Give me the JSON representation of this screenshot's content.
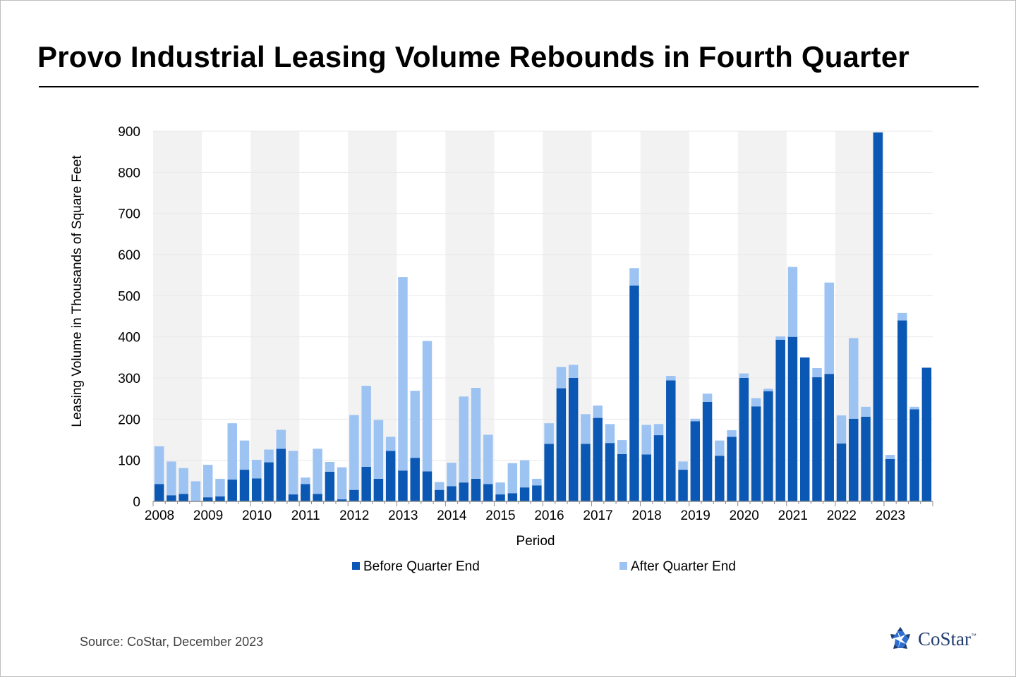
{
  "title": "Provo Industrial Leasing Volume Rebounds in Fourth Quarter",
  "source": "Source: CoStar, December 2023",
  "logo": {
    "text": "CoStar",
    "tm": "™"
  },
  "colors": {
    "before": "#0b57b4",
    "after": "#9dc3f3",
    "band": "#f2f2f2",
    "grid": "#e8e8e8",
    "axis": "#8c8c8c",
    "logo": "#1f3b6e"
  },
  "chart_data": {
    "type": "bar",
    "stacked": true,
    "xlabel": "Period",
    "ylabel": "Leasing Volume  in Thousands of Square Feet",
    "ylim": [
      0,
      900
    ],
    "yticks": [
      0,
      100,
      200,
      300,
      400,
      500,
      600,
      700,
      800,
      900
    ],
    "years": [
      "2008",
      "2009",
      "2010",
      "2011",
      "2012",
      "2013",
      "2014",
      "2015",
      "2016",
      "2017",
      "2018",
      "2019",
      "2020",
      "2021",
      "2022",
      "2023"
    ],
    "quarters_per_year": 4,
    "alternating_year_bands": true,
    "legend": {
      "position": "bottom"
    },
    "series": [
      {
        "name": "Before Quarter End",
        "values": [
          42,
          15,
          18,
          0,
          10,
          12,
          53,
          77,
          56,
          95,
          128,
          17,
          42,
          18,
          72,
          5,
          28,
          84,
          55,
          123,
          75,
          106,
          73,
          28,
          37,
          46,
          55,
          42,
          17,
          20,
          34,
          39,
          140,
          275,
          300,
          140,
          203,
          142,
          115,
          525,
          114,
          161,
          294,
          77,
          195,
          242,
          111,
          157,
          300,
          231,
          268,
          393,
          400,
          350,
          302,
          310,
          141,
          201,
          206,
          897,
          103,
          440,
          224,
          325
        ]
      },
      {
        "name": "After Quarter End",
        "values": [
          92,
          82,
          63,
          49,
          79,
          43,
          137,
          71,
          45,
          31,
          46,
          106,
          16,
          110,
          24,
          78,
          182,
          197,
          143,
          34,
          470,
          163,
          317,
          19,
          57,
          209,
          221,
          120,
          29,
          73,
          66,
          16,
          50,
          52,
          32,
          72,
          30,
          46,
          34,
          42,
          72,
          27,
          11,
          20,
          6,
          20,
          37,
          16,
          11,
          20,
          6,
          8,
          170,
          0,
          22,
          222,
          68,
          196,
          24,
          0,
          10,
          18,
          6,
          0
        ]
      }
    ]
  }
}
